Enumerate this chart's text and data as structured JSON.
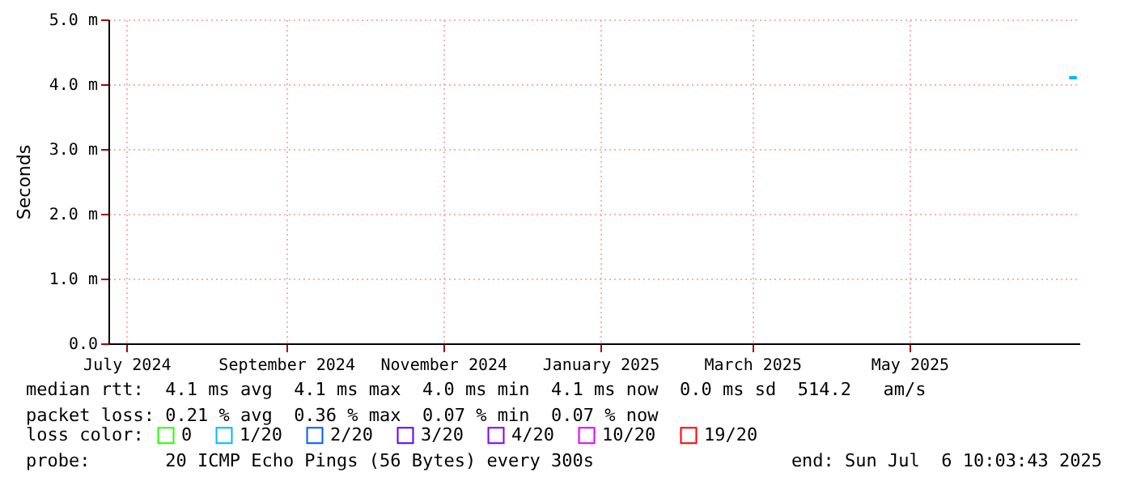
{
  "chart_data": {
    "type": "line",
    "ylabel": "Seconds",
    "legend_title": "loss color:",
    "legend": "bottom",
    "grid": true,
    "marker": "none",
    "x": [
      "2025-07-02",
      "2025-07-05"
    ],
    "xlim": [
      "2024-06-24",
      "2025-07-06"
    ],
    "xticks": [
      {
        "value": "2024-07-01",
        "label": "July 2024"
      },
      {
        "value": "2024-09-01",
        "label": "September 2024"
      },
      {
        "value": "2024-11-01",
        "label": "November 2024"
      },
      {
        "value": "2025-01-01",
        "label": "January 2025"
      },
      {
        "value": "2025-03-01",
        "label": "March 2025"
      },
      {
        "value": "2025-05-01",
        "label": "May 2025"
      }
    ],
    "ylim": [
      0,
      5
    ],
    "yticks": [
      {
        "value": 0,
        "label": "0.0"
      },
      {
        "value": 1,
        "label": "1.0 m"
      },
      {
        "value": 2,
        "label": "2.0 m"
      },
      {
        "value": 3,
        "label": "3.0 m"
      },
      {
        "value": 4,
        "label": "4.0 m"
      },
      {
        "value": 5,
        "label": "5.0 m"
      }
    ],
    "series": [
      {
        "name": "0",
        "color": "#26ff00",
        "values": [
          null,
          null
        ]
      },
      {
        "name": "1/20",
        "color": "#00b8ff",
        "values": [
          4.1,
          4.1
        ]
      },
      {
        "name": "2/20",
        "color": "#0059ff",
        "values": [
          null,
          null
        ]
      },
      {
        "name": "3/20",
        "color": "#5e00ff",
        "values": [
          null,
          null
        ]
      },
      {
        "name": "4/20",
        "color": "#7e00ff",
        "values": [
          null,
          null
        ]
      },
      {
        "name": "10/20",
        "color": "#dd00ff",
        "values": [
          null,
          null
        ]
      },
      {
        "name": "19/20",
        "color": "#ff0000",
        "values": [
          null,
          null
        ]
      }
    ],
    "annotations": [
      "median rtt:  4.1 ms avg  4.1 ms max  4.0 ms min  4.1 ms now  0.0 ms sd  514.2   am/s",
      "packet loss: 0.21 % avg  0.36 % max  0.07 % min  0.07 % now",
      "probe:       20 ICMP Echo Pings (56 Bytes) every 300s",
      "end: Sun Jul  6 10:03:43 2025"
    ]
  }
}
